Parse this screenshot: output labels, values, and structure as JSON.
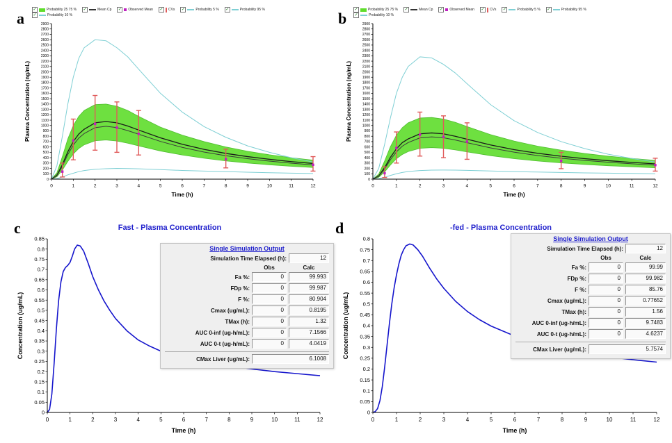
{
  "figure": {
    "background": "#ffffff",
    "panel_labels": {
      "a": "a",
      "b": "b",
      "c": "c",
      "d": "d"
    }
  },
  "colors": {
    "band_green": "#5fdd2c",
    "band_edge_green": "#3db81a",
    "probability_cyan": "#7ecfd4",
    "mean_black": "#1a1a1a",
    "observed_magenta": "#c020c0",
    "cv_red": "#e05a5a",
    "curve_blue": "#1515cc",
    "title_blue": "#2020cc"
  },
  "legend": {
    "row1": [
      {
        "label": "Probability 25 75 %",
        "glyph": "band",
        "color": "#5fdd2c"
      },
      {
        "label": "Mean Cp",
        "glyph": "line",
        "color": "#333333"
      },
      {
        "label": "Observed Mean",
        "glyph": "point",
        "color": "#c020c0"
      },
      {
        "label": "CVs",
        "glyph": "errorbar",
        "color": "#e05a5a"
      },
      {
        "label": "Probability 5 %",
        "glyph": "line",
        "color": "#7ecfd4"
      },
      {
        "label": "Probability 95 %",
        "glyph": "line",
        "color": "#7ecfd4"
      }
    ],
    "row2": [
      {
        "label": "Probability 10 %",
        "glyph": "line",
        "color": "#7ecfd4"
      }
    ]
  },
  "panels": {
    "c": {
      "title": "Fast - Plasma Concentration",
      "table": {
        "header": "Single Simulation Output",
        "elapsed_label": "Simulation Time Elapsed (h):",
        "elapsed_value": "12",
        "col_obs": "Obs",
        "col_calc": "Calc",
        "rows": [
          {
            "label": "Fa %:",
            "obs": "0",
            "calc": "99.993"
          },
          {
            "label": "FDp %:",
            "obs": "0",
            "calc": "99.987"
          },
          {
            "label": "F %:",
            "obs": "0",
            "calc": "80.904"
          },
          {
            "label": "Cmax (ug/mL):",
            "obs": "0",
            "calc": "0.8195"
          },
          {
            "label": "TMax (h):",
            "obs": "0",
            "calc": "1.32"
          },
          {
            "label": "AUC 0-inf (ug-h/mL):",
            "obs": "0",
            "calc": "7.1566"
          },
          {
            "label": "AUC 0-t (ug-h/mL):",
            "obs": "0",
            "calc": "4.0419"
          }
        ],
        "footer": {
          "label": "CMax Liver (ug/mL):",
          "value": "6.1008"
        }
      }
    },
    "d": {
      "title": "-fed - Plasma Concentration",
      "table": {
        "header": "Single Simulation Output",
        "elapsed_label": "Simulation Time Elapsed (h):",
        "elapsed_value": "12",
        "col_obs": "Obs",
        "col_calc": "Calc",
        "rows": [
          {
            "label": "Fa %:",
            "obs": "0",
            "calc": "99.99"
          },
          {
            "label": "FDp %:",
            "obs": "0",
            "calc": "99.982"
          },
          {
            "label": "F %:",
            "obs": "0",
            "calc": "85.76"
          },
          {
            "label": "Cmax (ug/mL):",
            "obs": "0",
            "calc": "0.77652"
          },
          {
            "label": "TMax (h):",
            "obs": "0",
            "calc": "1.56"
          },
          {
            "label": "AUC 0-inf (ug-h/mL):",
            "obs": "0",
            "calc": "9.7483"
          },
          {
            "label": "AUC 0-t (ug-h/mL):",
            "obs": "0",
            "calc": "4.6237"
          }
        ],
        "footer": {
          "label": "CMax Liver (ug/mL):",
          "value": "5.7574"
        }
      }
    }
  },
  "chart_data": [
    {
      "id": "a",
      "type": "line",
      "title": "",
      "xlabel": "Time (h)",
      "ylabel": "Plasma Concentration (ng/mL)",
      "xlim": [
        0,
        12
      ],
      "ylim": [
        0,
        2900
      ],
      "xtick_step": 1,
      "ytick_step": 100,
      "grid": false,
      "x": [
        0,
        0.25,
        0.5,
        0.75,
        1,
        1.25,
        1.5,
        2,
        2.5,
        3,
        3.5,
        4,
        5,
        6,
        7,
        8,
        9,
        10,
        11,
        12
      ],
      "band": {
        "name": "Probability 25 75 %",
        "color": "#5fdd2c",
        "edge_color": "#3db81a",
        "upper": [
          0,
          120,
          420,
          750,
          1000,
          1170,
          1280,
          1390,
          1400,
          1360,
          1280,
          1170,
          970,
          820,
          700,
          600,
          520,
          455,
          400,
          355
        ],
        "lower": [
          0,
          45,
          170,
          330,
          470,
          570,
          640,
          715,
          730,
          710,
          670,
          620,
          525,
          450,
          390,
          340,
          300,
          268,
          240,
          218
        ]
      },
      "lines": [
        {
          "name": "Probability 95 %",
          "color": "#7ecfd4",
          "width": 1,
          "y": [
            0,
            250,
            800,
            1400,
            1900,
            2250,
            2450,
            2600,
            2580,
            2450,
            2280,
            2050,
            1600,
            1250,
            980,
            780,
            620,
            500,
            400,
            320
          ]
        },
        {
          "name": "Probability 5 %",
          "color": "#7ecfd4",
          "width": 1,
          "y": [
            0,
            10,
            40,
            80,
            110,
            140,
            160,
            185,
            195,
            200,
            198,
            192,
            178,
            162,
            150,
            140,
            130,
            120,
            112,
            105
          ]
        },
        {
          "name": "Mean Cp",
          "color": "#1a1a1a",
          "width": 1.3,
          "y": [
            0,
            75,
            270,
            510,
            700,
            840,
            930,
            1050,
            1075,
            1050,
            990,
            915,
            770,
            650,
            555,
            480,
            420,
            370,
            327,
            292
          ]
        },
        {
          "name": "Mean Cp 2",
          "color": "#3a3a3a",
          "width": 1,
          "y": [
            0,
            65,
            240,
            460,
            635,
            765,
            850,
            960,
            985,
            962,
            905,
            838,
            703,
            592,
            505,
            437,
            382,
            336,
            298,
            266
          ]
        }
      ],
      "points": {
        "name": "Observed Mean",
        "color": "#c020c0",
        "x": [
          0.5,
          1,
          2,
          3,
          4,
          8,
          12
        ],
        "y": [
          140,
          720,
          1030,
          960,
          845,
          372,
          268
        ]
      },
      "errorbars": {
        "name": "CVs",
        "color": "#e05a5a",
        "x": [
          0.5,
          1,
          2,
          3,
          4,
          8,
          12
        ],
        "low": [
          40,
          360,
          540,
          500,
          450,
          210,
          150
        ],
        "high": [
          300,
          1120,
          1560,
          1440,
          1280,
          560,
          420
        ]
      }
    },
    {
      "id": "b",
      "type": "line",
      "title": "",
      "xlabel": "Time (h)",
      "ylabel": "Plasma Concentration (ng/mL)",
      "xlim": [
        0,
        12
      ],
      "ylim": [
        0,
        2900
      ],
      "xtick_step": 1,
      "ytick_step": 100,
      "grid": false,
      "x": [
        0,
        0.25,
        0.5,
        0.75,
        1,
        1.25,
        1.5,
        2,
        2.5,
        3,
        3.5,
        4,
        5,
        6,
        7,
        8,
        9,
        10,
        11,
        12
      ],
      "band": {
        "name": "Probability 25 75 %",
        "color": "#5fdd2c",
        "edge_color": "#3db81a",
        "upper": [
          0,
          95,
          340,
          610,
          820,
          960,
          1050,
          1140,
          1150,
          1120,
          1060,
          980,
          830,
          710,
          615,
          540,
          478,
          428,
          386,
          350
        ],
        "lower": [
          0,
          35,
          135,
          265,
          380,
          460,
          515,
          575,
          588,
          575,
          545,
          508,
          438,
          382,
          338,
          303,
          274,
          250,
          230,
          213
        ]
      },
      "lines": [
        {
          "name": "Probability 95 %",
          "color": "#7ecfd4",
          "width": 1,
          "y": [
            0,
            200,
            650,
            1150,
            1600,
            1900,
            2100,
            2280,
            2260,
            2140,
            1980,
            1780,
            1390,
            1090,
            870,
            700,
            570,
            465,
            385,
            320
          ]
        },
        {
          "name": "Probability 5 %",
          "color": "#7ecfd4",
          "width": 1,
          "y": [
            0,
            8,
            35,
            70,
            100,
            125,
            142,
            160,
            168,
            170,
            168,
            163,
            152,
            141,
            132,
            124,
            117,
            111,
            106,
            101
          ]
        },
        {
          "name": "Mean Cp",
          "color": "#1a1a1a",
          "width": 1.3,
          "y": [
            0,
            60,
            215,
            410,
            565,
            680,
            750,
            845,
            862,
            845,
            800,
            745,
            637,
            550,
            482,
            427,
            382,
            344,
            312,
            285
          ]
        },
        {
          "name": "Mean Cp 2",
          "color": "#3a3a3a",
          "width": 1,
          "y": [
            0,
            52,
            190,
            365,
            508,
            615,
            682,
            770,
            788,
            772,
            730,
            680,
            582,
            503,
            440,
            390,
            349,
            315,
            286,
            261
          ]
        }
      ],
      "points": {
        "name": "Observed Mean",
        "color": "#c020c0",
        "x": [
          0.5,
          1,
          2,
          3,
          4,
          8,
          12
        ],
        "y": [
          110,
          580,
          830,
          790,
          700,
          340,
          262
        ]
      },
      "errorbars": {
        "name": "CVs",
        "color": "#e05a5a",
        "x": [
          0.5,
          1,
          2,
          3,
          4,
          8,
          12
        ],
        "low": [
          30,
          300,
          430,
          400,
          370,
          195,
          150
        ],
        "high": [
          230,
          880,
          1250,
          1180,
          1050,
          500,
          390
        ]
      }
    },
    {
      "id": "c",
      "type": "line",
      "title": "Fast - Plasma Concentration",
      "xlabel": "Time (h)",
      "ylabel": "Concentration (ug/mL)",
      "xlim": [
        0,
        12
      ],
      "ylim": [
        0,
        0.85
      ],
      "xtick_step": 1,
      "ytick_step": 0.05,
      "grid": false,
      "x": [
        0,
        0.1,
        0.2,
        0.3,
        0.4,
        0.5,
        0.6,
        0.7,
        0.8,
        0.9,
        1,
        1.1,
        1.2,
        1.32,
        1.45,
        1.6,
        1.8,
        2,
        2.25,
        2.5,
        2.75,
        3,
        3.5,
        4,
        4.5,
        5,
        6,
        7,
        8,
        9,
        10,
        11,
        12
      ],
      "lines": [
        {
          "name": "Plasma Concentration",
          "color": "#1515cc",
          "width": 1.6,
          "y": [
            0,
            0.015,
            0.09,
            0.24,
            0.41,
            0.55,
            0.64,
            0.69,
            0.71,
            0.72,
            0.735,
            0.765,
            0.8,
            0.8195,
            0.815,
            0.79,
            0.73,
            0.665,
            0.6,
            0.545,
            0.5,
            0.46,
            0.4,
            0.355,
            0.325,
            0.3,
            0.268,
            0.245,
            0.228,
            0.213,
            0.2,
            0.19,
            0.18
          ]
        }
      ]
    },
    {
      "id": "d",
      "type": "line",
      "title": "-fed - Plasma Concentration",
      "xlabel": "Time (h)",
      "ylabel": "Concentration (ug/mL)",
      "xlim": [
        0,
        12
      ],
      "ylim": [
        0,
        0.8
      ],
      "xtick_step": 1,
      "ytick_step": 0.05,
      "grid": false,
      "x": [
        0,
        0.1,
        0.2,
        0.3,
        0.4,
        0.5,
        0.6,
        0.7,
        0.8,
        0.9,
        1,
        1.1,
        1.2,
        1.3,
        1.4,
        1.56,
        1.7,
        1.9,
        2.1,
        2.4,
        2.7,
        3,
        3.5,
        4,
        4.5,
        5,
        6,
        7,
        8,
        9,
        10,
        11,
        12
      ],
      "lines": [
        {
          "name": "Plasma Concentration",
          "color": "#1515cc",
          "width": 1.6,
          "y": [
            0,
            0.004,
            0.018,
            0.055,
            0.12,
            0.21,
            0.31,
            0.41,
            0.5,
            0.575,
            0.635,
            0.685,
            0.725,
            0.75,
            0.768,
            0.7765,
            0.772,
            0.75,
            0.72,
            0.665,
            0.615,
            0.572,
            0.512,
            0.465,
            0.428,
            0.398,
            0.352,
            0.318,
            0.293,
            0.272,
            0.256,
            0.243,
            0.232
          ]
        }
      ]
    }
  ]
}
